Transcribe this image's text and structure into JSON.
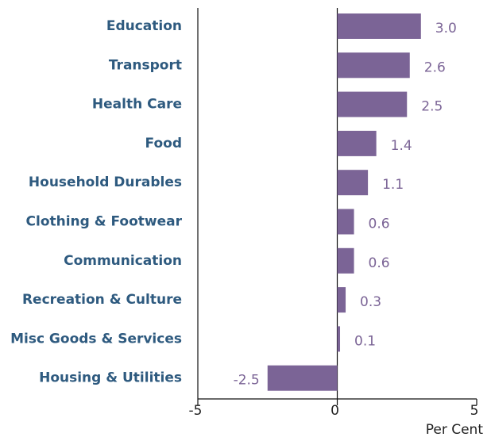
{
  "chart_data": {
    "type": "barh",
    "categories": [
      "Education",
      "Transport",
      "Health Care",
      "Food",
      "Household Durables",
      "Clothing & Footwear",
      "Communication",
      "Recreation & Culture",
      "Misc Goods & Services",
      "Housing & Utilities"
    ],
    "values": [
      3.0,
      2.6,
      2.5,
      1.4,
      1.1,
      0.6,
      0.6,
      0.3,
      0.1,
      -2.5
    ],
    "value_labels": [
      "3.0",
      "2.6",
      "2.5",
      "1.4",
      "1.1",
      "0.6",
      "0.6",
      "0.3",
      "0.1",
      "-2.5"
    ],
    "color": "#7b6496",
    "xlim": [
      -5,
      5
    ],
    "xticks": [
      -5,
      0,
      5
    ],
    "x_label": "Per Cent"
  }
}
